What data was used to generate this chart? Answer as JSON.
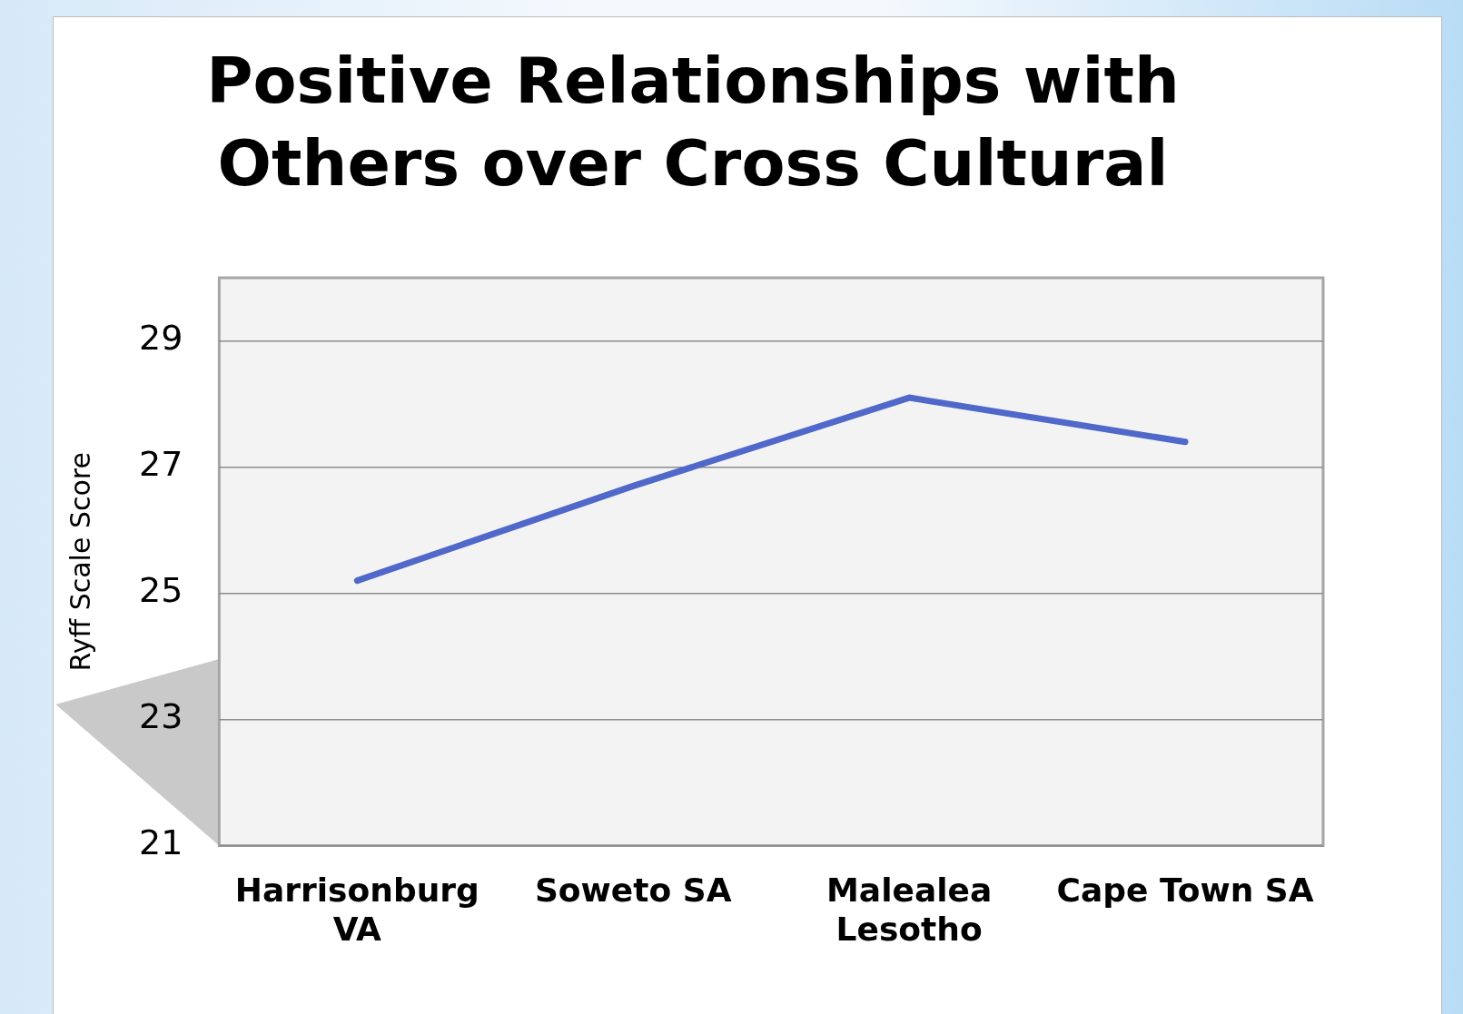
{
  "chart_data": {
    "type": "line",
    "title": "Positive Relationships with Others over Cross Cultural",
    "ylabel": "Ryff Scale Score",
    "categories": [
      "Harrisonburg VA",
      "Soweto SA",
      "Malealea Lesotho",
      "Cape Town SA"
    ],
    "values": [
      25.2,
      26.7,
      28.1,
      27.4
    ],
    "color": "#4f68c9",
    "ylim": [
      21,
      30
    ],
    "yticks": [
      21,
      23,
      25,
      27,
      29
    ],
    "grid": "y",
    "legend": false,
    "marker": "none",
    "line_style": "solid"
  }
}
